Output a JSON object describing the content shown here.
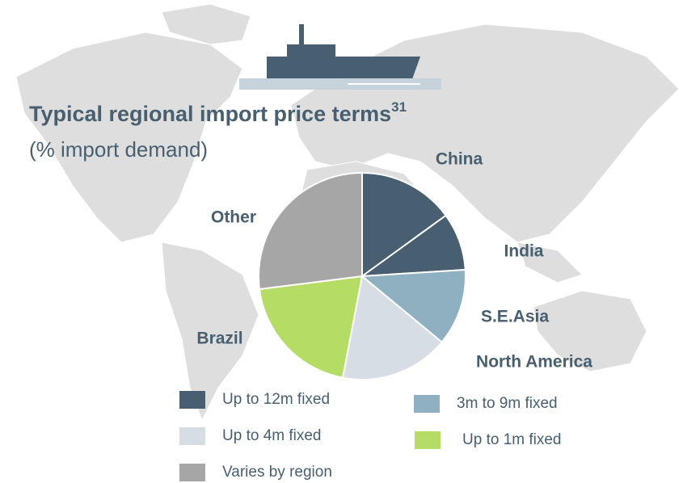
{
  "chart_data": {
    "type": "pie",
    "title": "Typical regional import price terms",
    "title_superscript": "31",
    "subtitle": "(% import demand)",
    "categories": [
      "China",
      "India",
      "S.E.Asia",
      "North America",
      "Brazil",
      "Other"
    ],
    "values": [
      15,
      9,
      12,
      17,
      20,
      27
    ],
    "colors": [
      "#475f70",
      "#475f70",
      "#8fb0c1",
      "#d6dde4",
      "#b5dc64",
      "#a6a6a6"
    ],
    "legend": [
      {
        "label": "Up to 12m fixed",
        "color": "#475f70"
      },
      {
        "label": "3m to 9m fixed",
        "color": "#8fb0c1"
      },
      {
        "label": "Up to 4m fixed",
        "color": "#d6dde4"
      },
      {
        "label": "Up to 1m fixed",
        "color": "#b5dc64"
      },
      {
        "label": "Varies by region",
        "color": "#a6a6a6"
      }
    ]
  }
}
